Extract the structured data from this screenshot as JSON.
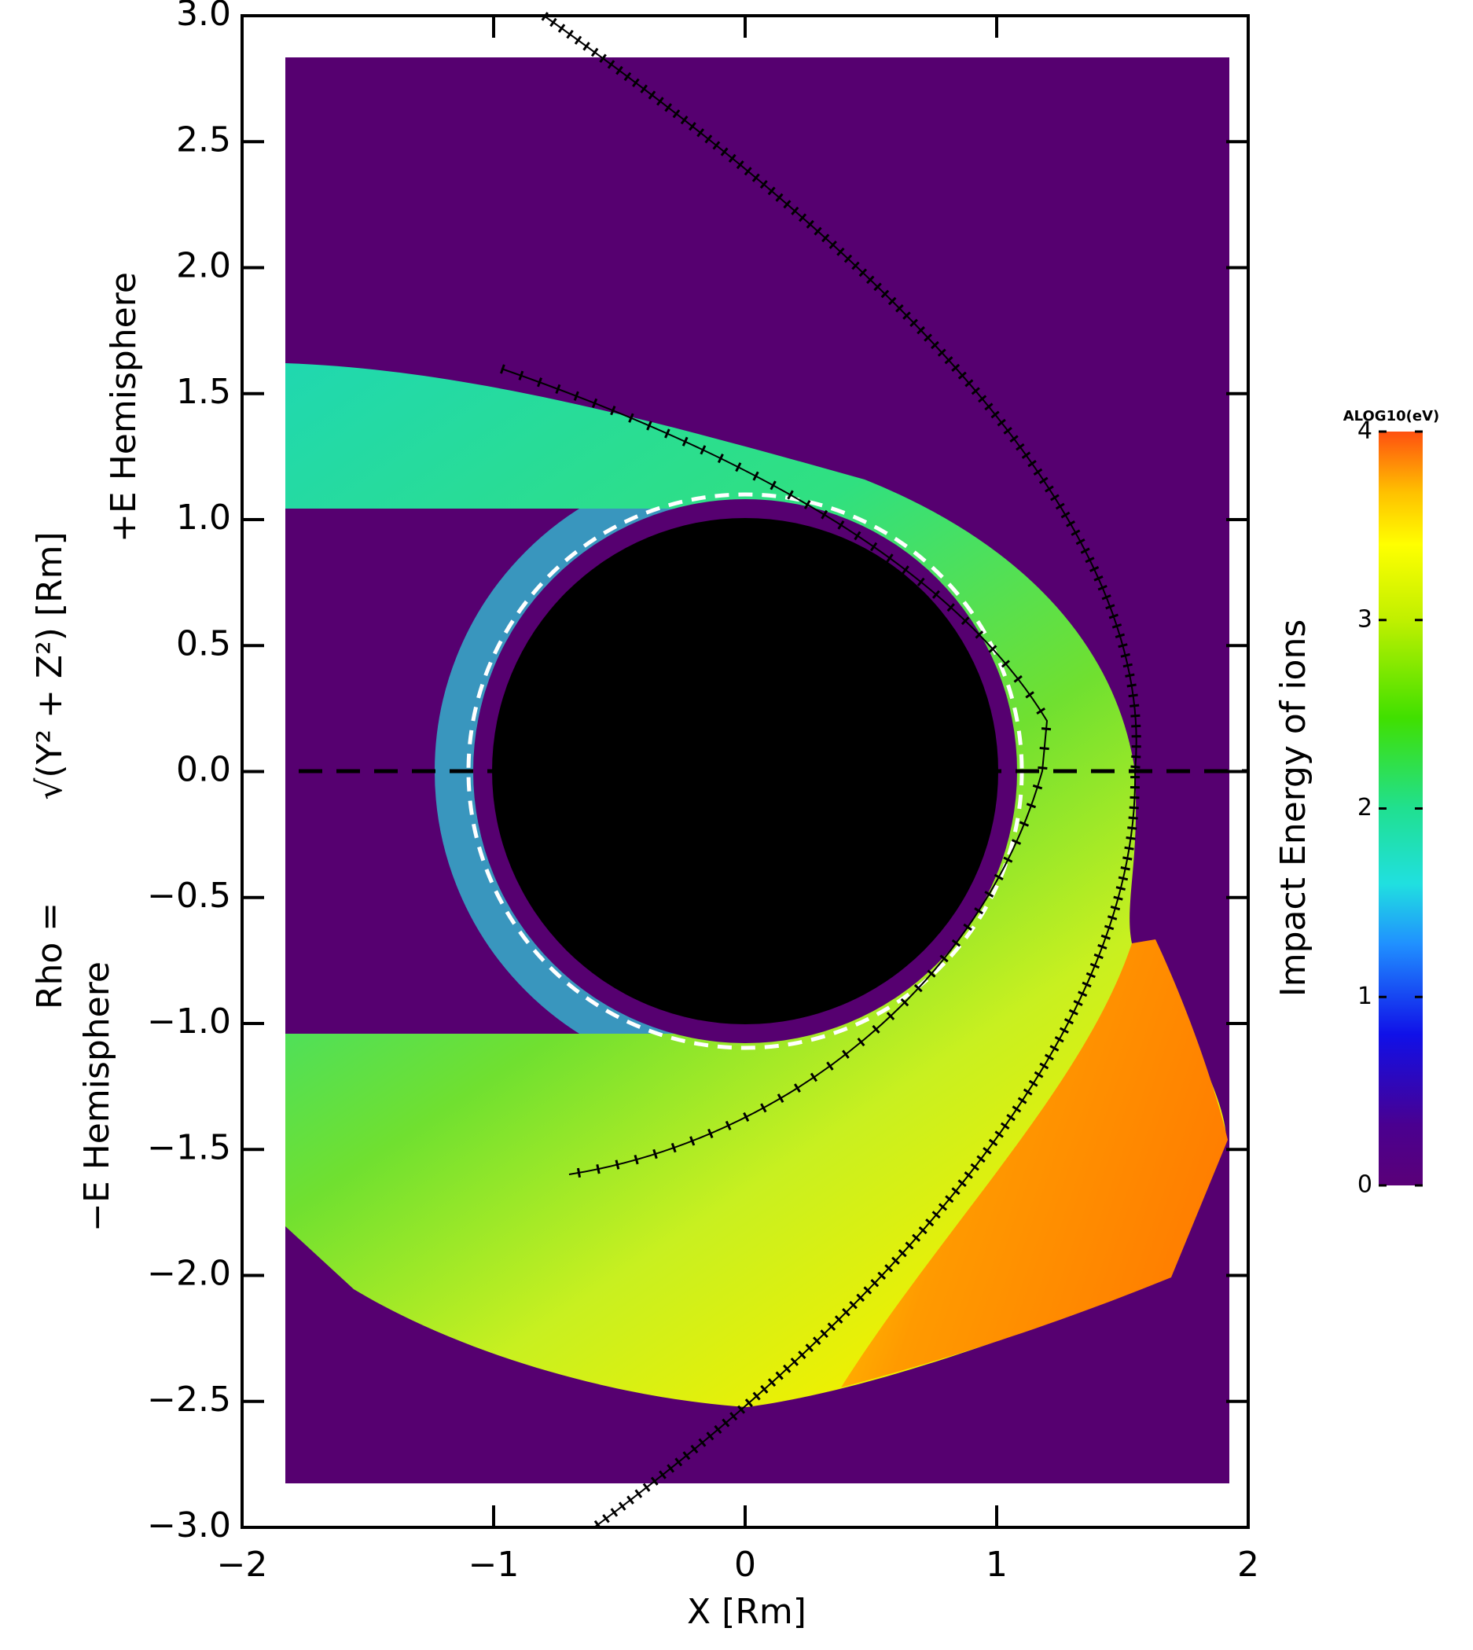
{
  "chart_data": {
    "type": "heatmap",
    "x_label": "X [Rm]",
    "y_label": [
      "Rho =",
      "√(Y² + Z²) [Rm]"
    ],
    "hemisphere_labels": [
      "+E Hemisphere",
      "−E Hemisphere"
    ],
    "xlim": [
      -2,
      2
    ],
    "xticks": [
      {
        "value": -2,
        "label": "−2"
      },
      {
        "value": -1,
        "label": "−1"
      },
      0,
      1,
      2
    ],
    "ylim": [
      -3,
      3
    ],
    "yticks": [
      {
        "value": -3,
        "label": "−3.0"
      },
      {
        "value": -2.5,
        "label": "−2.5"
      },
      {
        "value": -2,
        "label": "−2.0"
      },
      {
        "value": -1.5,
        "label": "−1.5"
      },
      {
        "value": -1,
        "label": "−1.0"
      },
      {
        "value": -0.5,
        "label": "−0.5"
      },
      {
        "value": 0,
        "label": "0.0"
      },
      {
        "value": 0.5,
        "label": "0.5"
      },
      {
        "value": 1,
        "label": "1.0"
      },
      {
        "value": 1.5,
        "label": "1.5"
      },
      {
        "value": 2,
        "label": "2.0"
      },
      {
        "value": 2.5,
        "label": "2.5"
      },
      {
        "value": 3,
        "label": "3.0"
      }
    ],
    "colorbar": {
      "label": "Impact Energy of ions",
      "unit_label": "ALOG10(eV)",
      "lim": [
        0,
        4
      ],
      "ticks": [
        0,
        1,
        2,
        3,
        4
      ]
    }
  }
}
